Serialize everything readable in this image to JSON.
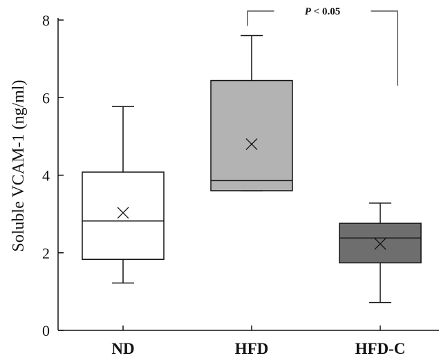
{
  "chart_data": {
    "type": "box",
    "ylabel": "Soluble VCAM-1 (ng/ml)",
    "ylim": [
      0,
      8
    ],
    "yticks": [
      "0",
      "2",
      "4",
      "6",
      "8"
    ],
    "grid": false,
    "boxes": [
      {
        "category": "ND",
        "min": 1.22,
        "q1": 1.83,
        "median": 2.82,
        "q3": 4.08,
        "max": 5.77,
        "mean": 3.03,
        "fill": "#ffffff"
      },
      {
        "category": "HFD",
        "min": 3.6,
        "q1": 3.6,
        "median": 3.86,
        "q3": 6.44,
        "max": 7.6,
        "mean": 4.8,
        "fill": "#b3b3b3"
      },
      {
        "category": "HFD-C",
        "min": 0.72,
        "q1": 1.74,
        "median": 2.38,
        "q3": 2.76,
        "max": 3.28,
        "mean": 2.23,
        "fill": "#6e6e6e"
      }
    ],
    "annotation": {
      "text_italic": "P",
      "text_rest": " < 0.05",
      "from": "HFD",
      "to": "HFD-C"
    }
  }
}
